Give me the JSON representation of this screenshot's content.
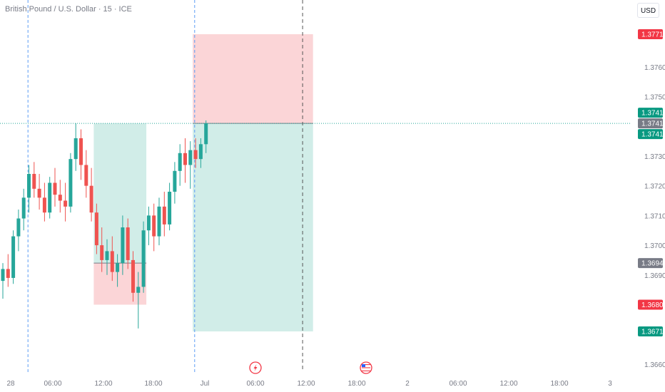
{
  "header": {
    "symbol_title": "British Pound / U.S. Dollar · 15 · ICE",
    "currency_label": "USD"
  },
  "colors": {
    "up": "#26a69a",
    "down": "#ef5350",
    "profit_zone": "#d1ede8",
    "loss_zone": "#fbd5d7",
    "current_price_line": "#26a69a",
    "tag_red": "#f23645",
    "tag_green": "#089981",
    "tag_gray": "#787b86",
    "session_line": "#5b9cf6"
  },
  "icons": {
    "event_flash": "lightning-icon",
    "event_us_flag": "us-flag-icon"
  },
  "chart_data": {
    "type": "candlestick",
    "symbol": "British Pound / U.S. Dollar",
    "interval": "15",
    "exchange": "ICE",
    "y_axis": {
      "labels": [
        "1.3760",
        "1.3750",
        "1.3730",
        "1.3720",
        "1.3710",
        "1.3700",
        "1.3690",
        "1.3660"
      ],
      "ylim": [
        1.3657,
        1.3781
      ]
    },
    "x_axis": {
      "labels": [
        "28",
        "06:00",
        "12:00",
        "18:00",
        "Jul",
        "06:00",
        "12:00",
        "18:00",
        "2",
        "06:00",
        "12:00",
        "18:00",
        "3"
      ]
    },
    "price_tags": [
      {
        "value": "1.3771",
        "color": "red"
      },
      {
        "value": "1.3741",
        "color": "green"
      },
      {
        "value": "1.3741",
        "color": "gray"
      },
      {
        "value": "1.3741",
        "color": "green"
      },
      {
        "value": "1.3694",
        "color": "gray"
      },
      {
        "value": "1.3680",
        "color": "red"
      },
      {
        "value": "1.3671",
        "color": "green"
      }
    ],
    "current_price": 1.3741,
    "positions": [
      {
        "side": "long",
        "entry": 1.3694,
        "stop": 1.368,
        "target": 1.3741,
        "start_bar": 18,
        "end_bar": 27
      },
      {
        "side": "short",
        "entry": 1.3741,
        "stop": 1.3771,
        "target": 1.3671,
        "start_bar": 37,
        "end_bar": 59
      }
    ],
    "session_separators_bars": [
      4,
      36
    ],
    "future_marker_bar": 57,
    "event_markers": [
      {
        "bar": 40,
        "icon": "lightning-icon"
      },
      {
        "bar": 57,
        "icon": "us-flag-icon"
      }
    ],
    "candles": [
      {
        "o": 1.3688,
        "h": 1.3694,
        "l": 1.3682,
        "c": 1.3692
      },
      {
        "o": 1.3692,
        "h": 1.3697,
        "l": 1.3686,
        "c": 1.3689
      },
      {
        "o": 1.3689,
        "h": 1.3705,
        "l": 1.3687,
        "c": 1.3703
      },
      {
        "o": 1.3703,
        "h": 1.3712,
        "l": 1.3698,
        "c": 1.3709
      },
      {
        "o": 1.3709,
        "h": 1.3719,
        "l": 1.3705,
        "c": 1.3716
      },
      {
        "o": 1.3716,
        "h": 1.3727,
        "l": 1.3711,
        "c": 1.3724
      },
      {
        "o": 1.3724,
        "h": 1.3728,
        "l": 1.3716,
        "c": 1.3719
      },
      {
        "o": 1.3719,
        "h": 1.3724,
        "l": 1.3712,
        "c": 1.3716
      },
      {
        "o": 1.3716,
        "h": 1.3721,
        "l": 1.3708,
        "c": 1.3711
      },
      {
        "o": 1.3711,
        "h": 1.3723,
        "l": 1.3709,
        "c": 1.3721
      },
      {
        "o": 1.3721,
        "h": 1.3726,
        "l": 1.3713,
        "c": 1.3717
      },
      {
        "o": 1.3717,
        "h": 1.3722,
        "l": 1.3711,
        "c": 1.3715
      },
      {
        "o": 1.3715,
        "h": 1.3721,
        "l": 1.3708,
        "c": 1.3713
      },
      {
        "o": 1.3713,
        "h": 1.3731,
        "l": 1.3711,
        "c": 1.3729
      },
      {
        "o": 1.3729,
        "h": 1.3741,
        "l": 1.3725,
        "c": 1.3736
      },
      {
        "o": 1.3736,
        "h": 1.3739,
        "l": 1.3722,
        "c": 1.3727
      },
      {
        "o": 1.3727,
        "h": 1.3732,
        "l": 1.3716,
        "c": 1.372
      },
      {
        "o": 1.372,
        "h": 1.3726,
        "l": 1.3708,
        "c": 1.3711
      },
      {
        "o": 1.3711,
        "h": 1.3714,
        "l": 1.3697,
        "c": 1.37
      },
      {
        "o": 1.37,
        "h": 1.3706,
        "l": 1.3691,
        "c": 1.3695
      },
      {
        "o": 1.3695,
        "h": 1.3702,
        "l": 1.369,
        "c": 1.3698
      },
      {
        "o": 1.3698,
        "h": 1.3703,
        "l": 1.3688,
        "c": 1.3691
      },
      {
        "o": 1.3691,
        "h": 1.3697,
        "l": 1.3686,
        "c": 1.3694
      },
      {
        "o": 1.3694,
        "h": 1.371,
        "l": 1.369,
        "c": 1.3706
      },
      {
        "o": 1.3706,
        "h": 1.3709,
        "l": 1.3692,
        "c": 1.3695
      },
      {
        "o": 1.3695,
        "h": 1.3698,
        "l": 1.3681,
        "c": 1.3684
      },
      {
        "o": 1.3684,
        "h": 1.3691,
        "l": 1.3672,
        "c": 1.3686
      },
      {
        "o": 1.3686,
        "h": 1.3708,
        "l": 1.3684,
        "c": 1.3705
      },
      {
        "o": 1.3705,
        "h": 1.3713,
        "l": 1.37,
        "c": 1.371
      },
      {
        "o": 1.371,
        "h": 1.3714,
        "l": 1.3698,
        "c": 1.3703
      },
      {
        "o": 1.3703,
        "h": 1.3716,
        "l": 1.37,
        "c": 1.3713
      },
      {
        "o": 1.3713,
        "h": 1.3718,
        "l": 1.3703,
        "c": 1.3707
      },
      {
        "o": 1.3707,
        "h": 1.3721,
        "l": 1.3705,
        "c": 1.3718
      },
      {
        "o": 1.3718,
        "h": 1.3728,
        "l": 1.3714,
        "c": 1.3725
      },
      {
        "o": 1.3725,
        "h": 1.3734,
        "l": 1.372,
        "c": 1.3731
      },
      {
        "o": 1.3731,
        "h": 1.3736,
        "l": 1.3721,
        "c": 1.3727
      },
      {
        "o": 1.3727,
        "h": 1.3735,
        "l": 1.3719,
        "c": 1.3732
      },
      {
        "o": 1.3732,
        "h": 1.3736,
        "l": 1.3726,
        "c": 1.3729
      },
      {
        "o": 1.3729,
        "h": 1.3736,
        "l": 1.3726,
        "c": 1.3734
      },
      {
        "o": 1.3734,
        "h": 1.3742,
        "l": 1.3731,
        "c": 1.3741
      }
    ]
  }
}
